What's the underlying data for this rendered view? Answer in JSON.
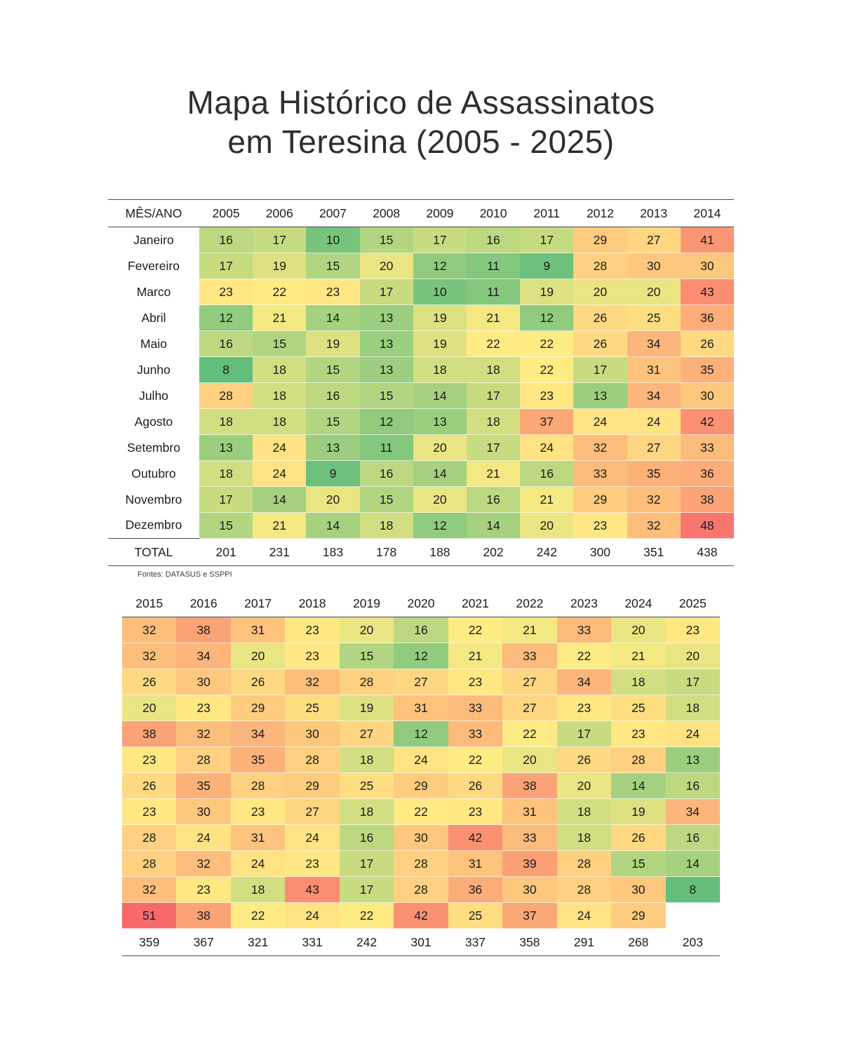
{
  "title": {
    "line1": "Mapa Histórico de Assassinatos",
    "line2": "em Teresina (2005 - 2025)"
  },
  "source": "Fontes: DATASUS e SSPPI",
  "chart_data": {
    "type": "heatmap",
    "title": "Mapa Histórico de Assassinatos em Teresina (2005 - 2025)",
    "months": [
      "Janeiro",
      "Fevereiro",
      "Marco",
      "Abril",
      "Maio",
      "Junho",
      "Julho",
      "Agosto",
      "Setembro",
      "Outubro",
      "Novembro",
      "Dezembro"
    ],
    "colorscale": {
      "min": 8,
      "mid": 22,
      "max": 51,
      "min_color": "#63be7b",
      "mid_color": "#ffeb84",
      "max_color": "#f8696b"
    },
    "table1": {
      "corner_label": "MÊS/ANO",
      "total_label": "TOTAL",
      "years": [
        "2005",
        "2006",
        "2007",
        "2008",
        "2009",
        "2010",
        "2011",
        "2012",
        "2013",
        "2014"
      ],
      "rows": [
        [
          16,
          17,
          10,
          15,
          17,
          16,
          17,
          29,
          27,
          41
        ],
        [
          17,
          19,
          15,
          20,
          12,
          11,
          9,
          28,
          30,
          30
        ],
        [
          23,
          22,
          23,
          17,
          10,
          11,
          19,
          20,
          20,
          43
        ],
        [
          12,
          21,
          14,
          13,
          19,
          21,
          12,
          26,
          25,
          36
        ],
        [
          16,
          15,
          19,
          13,
          19,
          22,
          22,
          26,
          34,
          26
        ],
        [
          8,
          18,
          15,
          13,
          18,
          18,
          22,
          17,
          31,
          35
        ],
        [
          28,
          18,
          16,
          15,
          14,
          17,
          23,
          13,
          34,
          30
        ],
        [
          18,
          18,
          15,
          12,
          13,
          18,
          37,
          24,
          24,
          42
        ],
        [
          13,
          24,
          13,
          11,
          20,
          17,
          24,
          32,
          27,
          33
        ],
        [
          18,
          24,
          9,
          16,
          14,
          21,
          16,
          33,
          35,
          36
        ],
        [
          17,
          14,
          20,
          15,
          20,
          16,
          21,
          29,
          32,
          38
        ],
        [
          15,
          21,
          14,
          18,
          12,
          14,
          20,
          23,
          32,
          48
        ]
      ],
      "totals": [
        201,
        231,
        183,
        178,
        188,
        202,
        242,
        300,
        351,
        438
      ]
    },
    "table2": {
      "years": [
        "2015",
        "2016",
        "2017",
        "2018",
        "2019",
        "2020",
        "2021",
        "2022",
        "2023",
        "2024",
        "2025"
      ],
      "rows": [
        [
          32,
          38,
          31,
          23,
          20,
          16,
          22,
          21,
          33,
          20,
          23
        ],
        [
          32,
          34,
          20,
          23,
          15,
          12,
          21,
          33,
          22,
          21,
          20
        ],
        [
          26,
          30,
          26,
          32,
          28,
          27,
          23,
          27,
          34,
          18,
          17
        ],
        [
          20,
          23,
          29,
          25,
          19,
          31,
          33,
          27,
          23,
          25,
          18
        ],
        [
          38,
          32,
          34,
          30,
          27,
          12,
          33,
          22,
          17,
          23,
          24
        ],
        [
          23,
          28,
          35,
          28,
          18,
          24,
          22,
          20,
          26,
          28,
          13
        ],
        [
          26,
          35,
          28,
          29,
          25,
          29,
          26,
          38,
          20,
          14,
          16
        ],
        [
          23,
          30,
          23,
          27,
          18,
          22,
          23,
          31,
          18,
          19,
          34
        ],
        [
          28,
          24,
          31,
          24,
          16,
          30,
          42,
          33,
          18,
          26,
          16
        ],
        [
          28,
          32,
          24,
          23,
          17,
          28,
          31,
          39,
          28,
          15,
          14
        ],
        [
          32,
          23,
          18,
          43,
          17,
          28,
          36,
          30,
          28,
          30,
          8
        ],
        [
          51,
          38,
          22,
          24,
          22,
          42,
          25,
          37,
          24,
          29,
          null
        ]
      ],
      "totals": [
        359,
        367,
        321,
        331,
        242,
        301,
        337,
        358,
        291,
        268,
        203
      ]
    }
  }
}
